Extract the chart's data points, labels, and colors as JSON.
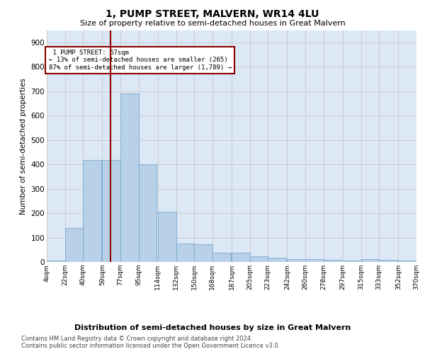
{
  "title": "1, PUMP STREET, MALVERN, WR14 4LU",
  "subtitle": "Size of property relative to semi-detached houses in Great Malvern",
  "xlabel": "Distribution of semi-detached houses by size in Great Malvern",
  "ylabel": "Number of semi-detached properties",
  "bar_color": "#b8d0e8",
  "bar_edge_color": "#7aaad0",
  "bar_left_edges": [
    4,
    22,
    40,
    59,
    77,
    95,
    114,
    132,
    150,
    168,
    187,
    205,
    223,
    242,
    260,
    278,
    297,
    315,
    333,
    352
  ],
  "bar_heights": [
    5,
    140,
    417,
    418,
    690,
    400,
    205,
    74,
    73,
    37,
    37,
    22,
    18,
    12,
    12,
    8,
    5,
    12,
    8,
    5
  ],
  "bin_width": 18,
  "tick_labels": [
    "4sqm",
    "22sqm",
    "40sqm",
    "59sqm",
    "77sqm",
    "95sqm",
    "114sqm",
    "132sqm",
    "150sqm",
    "168sqm",
    "187sqm",
    "205sqm",
    "223sqm",
    "242sqm",
    "260sqm",
    "278sqm",
    "297sqm",
    "315sqm",
    "333sqm",
    "352sqm",
    "370sqm"
  ],
  "property_size": 67,
  "property_label": "1 PUMP STREET: 67sqm",
  "pct_smaller": 13,
  "count_smaller": 265,
  "pct_larger": 87,
  "count_larger": 1789,
  "vline_color": "#8b0000",
  "annotation_box_color": "#8b0000",
  "ylim": [
    0,
    950
  ],
  "yticks": [
    0,
    100,
    200,
    300,
    400,
    500,
    600,
    700,
    800,
    900
  ],
  "grid_color": "#cccccc",
  "background_color": "#dce8f5",
  "footer_line1": "Contains HM Land Registry data © Crown copyright and database right 2024.",
  "footer_line2": "Contains public sector information licensed under the Open Government Licence v3.0."
}
